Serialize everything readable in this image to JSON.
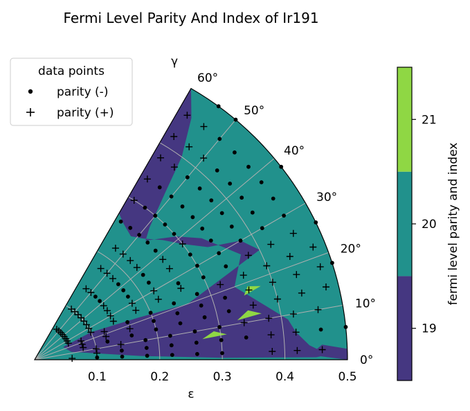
{
  "chart_data": {
    "type": "polar-contour",
    "title": "Fermi Level Parity And Index of Ir191",
    "radial_axis": {
      "label": "ε",
      "range": [
        0,
        0.5
      ],
      "ticks": [
        "0.1",
        "0.2",
        "0.3",
        "0.4",
        "0.5"
      ],
      "tick_values": [
        0.1,
        0.2,
        0.3,
        0.4,
        0.5
      ]
    },
    "angular_axis": {
      "label": "γ",
      "range_deg": [
        0,
        60
      ],
      "ticks": [
        "0°",
        "10°",
        "20°",
        "30°",
        "40°",
        "50°",
        "60°"
      ],
      "tick_values": [
        0,
        10,
        20,
        30,
        40,
        50,
        60
      ]
    },
    "grid": true,
    "colorbar": {
      "label": "fermi level parity and index",
      "ticks": [
        "19",
        "20",
        "21"
      ],
      "levels": [
        18.5,
        19.5,
        20.5,
        21.5
      ],
      "colors": [
        "#453781",
        "#21918c",
        "#8fd744"
      ]
    },
    "legend": {
      "title": "data points",
      "placement": "upper-left",
      "entries": [
        {
          "symbol": "dot",
          "label": "parity (-)"
        },
        {
          "symbol": "plus",
          "label": "parity (+)"
        }
      ]
    },
    "regions": {
      "level_19": [
        [
          [
            0.45,
            0.5
          ],
          [
            0.3,
            0.6
          ],
          [
            0.17,
            2.0
          ],
          [
            0.06,
            12.0
          ],
          [
            0.05,
            24.0
          ],
          [
            0.1,
            26.0
          ],
          [
            0.18,
            22.0
          ],
          [
            0.26,
            20.0
          ],
          [
            0.34,
            24.0
          ],
          [
            0.4,
            26.0
          ],
          [
            0.38,
            30.0
          ],
          [
            0.33,
            33.0
          ],
          [
            0.3,
            38.0
          ],
          [
            0.28,
            43.0
          ],
          [
            0.26,
            48.0
          ],
          [
            0.25,
            52.0
          ],
          [
            0.26,
            57.0
          ],
          [
            0.27,
            60.0
          ],
          [
            0.5,
            60.0
          ],
          [
            0.46,
            57.0
          ],
          [
            0.4,
            54.0
          ],
          [
            0.34,
            52.0
          ],
          [
            0.28,
            49.0
          ],
          [
            0.26,
            47.0
          ],
          [
            0.3,
            41.0
          ],
          [
            0.33,
            36.0
          ],
          [
            0.35,
            31.0
          ],
          [
            0.37,
            27.0
          ],
          [
            0.34,
            20.0
          ],
          [
            0.38,
            13.0
          ],
          [
            0.41,
            9.0
          ],
          [
            0.42,
            6.0
          ],
          [
            0.44,
            3.0
          ],
          [
            0.47,
            1.0
          ]
        ],
        [
          [
            0.5,
            0.0
          ],
          [
            0.5,
            2.0
          ],
          [
            0.46,
            3.0
          ],
          [
            0.44,
            1.0
          ]
        ]
      ],
      "level_21": [
        [
          [
            0.27,
            7.0
          ],
          [
            0.31,
            7.5
          ],
          [
            0.29,
            9.0
          ]
        ],
        [
          [
            0.33,
            11.0
          ],
          [
            0.37,
            11.5
          ],
          [
            0.35,
            13.0
          ]
        ],
        [
          [
            0.35,
            17.0
          ],
          [
            0.38,
            18.0
          ],
          [
            0.36,
            19.0
          ]
        ]
      ]
    },
    "points": {
      "parity_minus": [
        [
          0.1,
          2
        ],
        [
          0.14,
          2
        ],
        [
          0.18,
          2
        ],
        [
          0.22,
          2
        ],
        [
          0.26,
          2
        ],
        [
          0.3,
          2
        ],
        [
          0.14,
          6
        ],
        [
          0.18,
          6
        ],
        [
          0.22,
          6
        ],
        [
          0.26,
          6
        ],
        [
          0.3,
          6
        ],
        [
          0.34,
          6
        ],
        [
          0.18,
          10
        ],
        [
          0.22,
          10
        ],
        [
          0.26,
          10
        ],
        [
          0.3,
          10
        ],
        [
          0.12,
          14
        ],
        [
          0.16,
          14
        ],
        [
          0.2,
          14
        ],
        [
          0.24,
          14
        ],
        [
          0.28,
          14
        ],
        [
          0.32,
          14
        ],
        [
          0.2,
          18
        ],
        [
          0.24,
          18
        ],
        [
          0.28,
          18
        ],
        [
          0.32,
          18
        ],
        [
          0.16,
          22
        ],
        [
          0.2,
          22
        ],
        [
          0.24,
          22
        ],
        [
          0.28,
          22
        ],
        [
          0.3,
          26
        ],
        [
          0.34,
          26
        ],
        [
          0.26,
          28
        ],
        [
          0.3,
          30
        ],
        [
          0.34,
          30
        ],
        [
          0.38,
          30
        ],
        [
          0.42,
          30
        ],
        [
          0.46,
          30
        ],
        [
          0.3,
          34
        ],
        [
          0.34,
          34
        ],
        [
          0.38,
          34
        ],
        [
          0.42,
          34
        ],
        [
          0.46,
          34
        ],
        [
          0.34,
          38
        ],
        [
          0.38,
          38
        ],
        [
          0.42,
          38
        ],
        [
          0.46,
          38
        ],
        [
          0.26,
          42
        ],
        [
          0.3,
          42
        ],
        [
          0.34,
          42
        ],
        [
          0.38,
          42
        ],
        [
          0.42,
          42
        ],
        [
          0.46,
          42
        ],
        [
          0.26,
          46
        ],
        [
          0.3,
          46
        ],
        [
          0.34,
          46
        ],
        [
          0.38,
          46
        ],
        [
          0.42,
          46
        ],
        [
          0.46,
          46
        ],
        [
          0.26,
          50
        ],
        [
          0.3,
          50
        ],
        [
          0.34,
          50
        ],
        [
          0.38,
          50
        ],
        [
          0.26,
          54
        ],
        [
          0.3,
          54
        ],
        [
          0.34,
          54
        ],
        [
          0.26,
          58
        ],
        [
          0.46,
          6
        ],
        [
          0.5,
          6
        ],
        [
          0.5,
          18
        ],
        [
          0.5,
          26
        ],
        [
          0.5,
          38
        ],
        [
          0.5,
          50
        ],
        [
          0.46,
          50
        ],
        [
          0.5,
          54
        ],
        [
          0.22,
          34
        ],
        [
          0.18,
          34
        ],
        [
          0.22,
          38
        ],
        [
          0.18,
          38
        ],
        [
          0.14,
          42
        ],
        [
          0.18,
          42
        ],
        [
          0.14,
          46
        ]
      ],
      "parity_plus": [
        [
          0.06,
          2
        ],
        [
          0.38,
          2
        ],
        [
          0.42,
          2
        ],
        [
          0.46,
          2
        ],
        [
          0.1,
          6
        ],
        [
          0.38,
          6
        ],
        [
          0.42,
          6
        ],
        [
          0.1,
          10
        ],
        [
          0.14,
          10
        ],
        [
          0.34,
          10
        ],
        [
          0.38,
          10
        ],
        [
          0.42,
          10
        ],
        [
          0.46,
          10
        ],
        [
          0.08,
          14
        ],
        [
          0.36,
          14
        ],
        [
          0.4,
          14
        ],
        [
          0.44,
          14
        ],
        [
          0.48,
          14
        ],
        [
          0.08,
          18
        ],
        [
          0.12,
          18
        ],
        [
          0.16,
          18
        ],
        [
          0.36,
          18
        ],
        [
          0.4,
          18
        ],
        [
          0.44,
          18
        ],
        [
          0.48,
          18
        ],
        [
          0.08,
          22
        ],
        [
          0.12,
          22
        ],
        [
          0.32,
          22
        ],
        [
          0.36,
          22
        ],
        [
          0.4,
          22
        ],
        [
          0.44,
          22
        ],
        [
          0.48,
          22
        ],
        [
          0.06,
          26
        ],
        [
          0.1,
          26
        ],
        [
          0.14,
          26
        ],
        [
          0.18,
          26
        ],
        [
          0.22,
          26
        ],
        [
          0.26,
          26
        ],
        [
          0.38,
          26
        ],
        [
          0.42,
          26
        ],
        [
          0.46,
          26
        ],
        [
          0.06,
          30
        ],
        [
          0.1,
          30
        ],
        [
          0.14,
          30
        ],
        [
          0.18,
          30
        ],
        [
          0.22,
          30
        ],
        [
          0.06,
          34
        ],
        [
          0.1,
          34
        ],
        [
          0.14,
          34
        ],
        [
          0.26,
          34
        ],
        [
          0.06,
          38
        ],
        [
          0.1,
          38
        ],
        [
          0.14,
          38
        ],
        [
          0.26,
          38
        ],
        [
          0.3,
          38
        ],
        [
          0.06,
          42
        ],
        [
          0.1,
          42
        ],
        [
          0.22,
          42
        ],
        [
          0.06,
          46
        ],
        [
          0.1,
          46
        ],
        [
          0.18,
          46
        ],
        [
          0.22,
          46
        ],
        [
          0.06,
          50
        ],
        [
          0.1,
          50
        ],
        [
          0.14,
          50
        ],
        [
          0.18,
          50
        ],
        [
          0.22,
          50
        ],
        [
          0.42,
          50
        ],
        [
          0.06,
          54
        ],
        [
          0.1,
          54
        ],
        [
          0.14,
          54
        ],
        [
          0.18,
          54
        ],
        [
          0.22,
          54
        ],
        [
          0.38,
          54
        ],
        [
          0.42,
          54
        ],
        [
          0.46,
          54
        ],
        [
          0.3,
          58
        ],
        [
          0.34,
          58
        ],
        [
          0.38,
          58
        ],
        [
          0.42,
          58
        ],
        [
          0.46,
          58
        ]
      ]
    }
  }
}
